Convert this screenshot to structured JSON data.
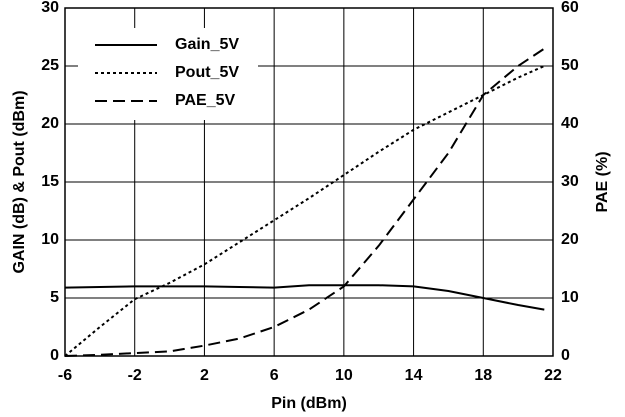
{
  "chart_data": {
    "type": "line",
    "xlabel": "Pin (dBm)",
    "ylabel": "GAIN (dB) & Pout (dBm)",
    "y2label": "PAE (%)",
    "x": [
      -6,
      -4,
      -2,
      0,
      2,
      4,
      6,
      8,
      10,
      12,
      14,
      16,
      18,
      20,
      21.5
    ],
    "series": [
      {
        "name": "Gain_5V",
        "color": "#000000",
        "dash": "none",
        "values": [
          5.9,
          5.95,
          6,
          6,
          6,
          5.95,
          5.9,
          6.1,
          6.1,
          6.1,
          6,
          5.6,
          5,
          4.4,
          4.0
        ]
      },
      {
        "name": "Pout_5V",
        "color": "#000000",
        "dash": "3,3",
        "values": [
          0,
          2.5,
          4.9,
          6.3,
          7.9,
          9.8,
          11.7,
          13.6,
          15.6,
          17.6,
          19.5,
          21,
          22.5,
          24,
          25
        ]
      },
      {
        "name": "PAE_5V",
        "color": "#000000",
        "dash": "12,6",
        "axis": "y2",
        "values": [
          0,
          0.2,
          0.5,
          0.8,
          1.8,
          3,
          5,
          8,
          12,
          19,
          27,
          35,
          45,
          50,
          53
        ]
      }
    ],
    "xlim": [
      -6,
      22
    ],
    "xticks": [
      -6,
      -2,
      2,
      6,
      10,
      14,
      18,
      22
    ],
    "ylim": [
      0,
      30
    ],
    "yticks": [
      0,
      5,
      10,
      15,
      20,
      25,
      30
    ],
    "y2lim": [
      0,
      60
    ],
    "y2ticks": [
      0,
      10,
      20,
      30,
      40,
      50,
      60
    ],
    "grid": true,
    "legend": "upper left"
  }
}
